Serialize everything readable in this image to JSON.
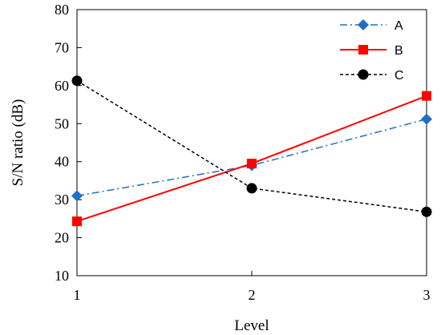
{
  "chart_data": {
    "type": "line",
    "title": "",
    "xlabel": "Level",
    "ylabel": "S/N ratio (dB)",
    "x": [
      1,
      2,
      3
    ],
    "x_tick_labels": [
      "1",
      "2",
      "3"
    ],
    "ylim": [
      10,
      80
    ],
    "y_ticks": [
      10,
      20,
      30,
      40,
      50,
      60,
      70,
      80
    ],
    "y_tick_labels": [
      "10",
      "20",
      "30",
      "40",
      "50",
      "60",
      "70",
      "80"
    ],
    "grid": false,
    "legend_position": "top-right",
    "series": [
      {
        "name": "A",
        "values": [
          31,
          39,
          51.2
        ],
        "color": "#1F6FC5",
        "marker": "diamond",
        "line_style": "dash-dot"
      },
      {
        "name": "B",
        "values": [
          24.3,
          39.5,
          57.3
        ],
        "color": "#FF0000",
        "marker": "square",
        "line_style": "solid"
      },
      {
        "name": "C",
        "values": [
          61.3,
          33,
          26.8
        ],
        "color": "#000000",
        "marker": "circle",
        "line_style": "dashed"
      }
    ]
  }
}
